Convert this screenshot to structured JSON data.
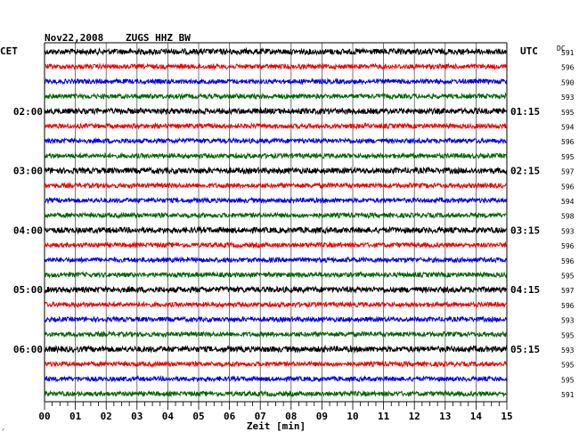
{
  "header": {
    "date": "Nov22,2008",
    "station": "ZUGS HHZ BW",
    "left_zone": "CET",
    "right_zone": "UTC",
    "dc_label": "DC"
  },
  "chart_data": {
    "type": "seismogram-helicorder",
    "title": "Nov22,2008   ZUGS HHZ BW",
    "xlabel": "Zeit [min]",
    "xlim": [
      0,
      15
    ],
    "x_ticks": [
      "00",
      "01",
      "02",
      "03",
      "04",
      "05",
      "06",
      "07",
      "08",
      "09",
      "10",
      "11",
      "12",
      "13",
      "14",
      "15"
    ],
    "trace_colors": [
      "#000000",
      "#ee0000",
      "#0000ee",
      "#006400"
    ],
    "grid": "vertical, every 1 min",
    "rows": 24,
    "hour_labels_left": [
      {
        "row": 4,
        "label": "02:00"
      },
      {
        "row": 8,
        "label": "03:00"
      },
      {
        "row": 12,
        "label": "04:00"
      },
      {
        "row": 16,
        "label": "05:00"
      },
      {
        "row": 20,
        "label": "06:00"
      }
    ],
    "hour_labels_right": [
      {
        "row": 4,
        "label": "01:15"
      },
      {
        "row": 8,
        "label": "02:15"
      },
      {
        "row": 12,
        "label": "03:15"
      },
      {
        "row": 16,
        "label": "04:15"
      },
      {
        "row": 20,
        "label": "05:15"
      }
    ],
    "dc_values": [
      591,
      596,
      590,
      593,
      595,
      594,
      596,
      595,
      597,
      596,
      594,
      598,
      593,
      596,
      596,
      595,
      597,
      596,
      593,
      595,
      593,
      595,
      595,
      591
    ]
  }
}
